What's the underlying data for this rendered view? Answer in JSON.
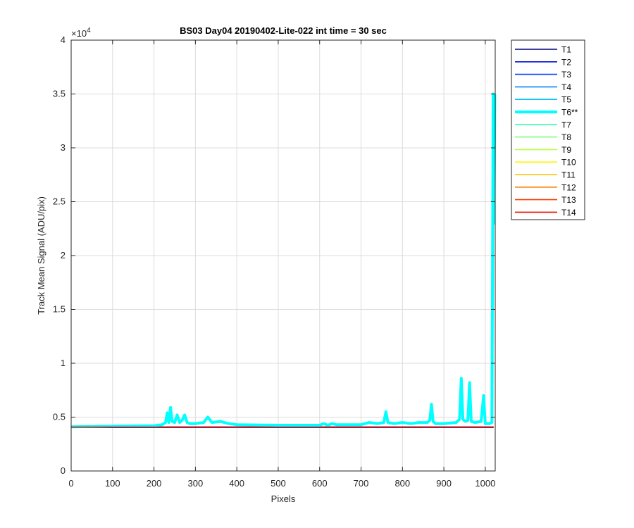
{
  "chart_data": {
    "type": "line",
    "title": "BS03 Day04 20190402-Lite-022 int time = 30 sec",
    "xlabel": "Pixels",
    "ylabel": "Track Mean Signal (ADU/pix)",
    "y_exponent_label": "×10",
    "y_exponent": "4",
    "xlim": [
      0,
      1024
    ],
    "ylim": [
      0,
      40000
    ],
    "xticks": [
      0,
      100,
      200,
      300,
      400,
      500,
      600,
      700,
      800,
      900,
      1000
    ],
    "xtick_labels": [
      "0",
      "100",
      "200",
      "300",
      "400",
      "500",
      "600",
      "700",
      "800",
      "900",
      "1000"
    ],
    "yticks": [
      0,
      5000,
      10000,
      15000,
      20000,
      25000,
      30000,
      35000,
      40000
    ],
    "ytick_labels": [
      "0",
      "0.5",
      "1",
      "1.5",
      "2",
      "2.5",
      "3",
      "3.5",
      "4"
    ],
    "grid": true,
    "legend_position": "outside-top-right",
    "series": [
      {
        "name": "T1",
        "color": "#00007F",
        "highlight": false
      },
      {
        "name": "T2",
        "color": "#0011D4",
        "highlight": false
      },
      {
        "name": "T3",
        "color": "#0044FF",
        "highlight": false
      },
      {
        "name": "T4",
        "color": "#0085FF",
        "highlight": false
      },
      {
        "name": "T5",
        "color": "#00C0FF",
        "highlight": false
      },
      {
        "name": "T6**",
        "color": "#00FFFF",
        "highlight": true,
        "x": [
          0,
          100,
          200,
          220,
          228,
          232,
          236,
          240,
          244,
          250,
          256,
          262,
          268,
          274,
          280,
          286,
          300,
          320,
          330,
          340,
          360,
          380,
          400,
          500,
          600,
          610,
          620,
          630,
          640,
          700,
          720,
          740,
          755,
          760,
          765,
          780,
          800,
          820,
          840,
          860,
          866,
          870,
          874,
          880,
          900,
          930,
          938,
          942,
          946,
          952,
          958,
          962,
          966,
          975,
          990,
          996,
          1000,
          1004,
          1010,
          1016,
          1019,
          1021,
          1023
        ],
        "y": [
          4100,
          4150,
          4200,
          4300,
          4500,
          5400,
          4500,
          5900,
          4600,
          4500,
          5200,
          4500,
          4700,
          5200,
          4500,
          4400,
          4400,
          4500,
          5000,
          4500,
          4600,
          4400,
          4300,
          4250,
          4250,
          4400,
          4250,
          4400,
          4300,
          4300,
          4500,
          4400,
          4500,
          5500,
          4500,
          4400,
          4500,
          4400,
          4500,
          4500,
          4700,
          6200,
          4600,
          4400,
          4400,
          4500,
          4800,
          8600,
          4800,
          4600,
          4700,
          8200,
          4600,
          4500,
          4600,
          7000,
          4400,
          4400,
          4400,
          4500,
          35000,
          23000,
          35000
        ]
      },
      {
        "name": "T7",
        "color": "#40FFB8",
        "highlight": false
      },
      {
        "name": "T8",
        "color": "#7CFF7C",
        "highlight": false
      },
      {
        "name": "T9",
        "color": "#B8FF40",
        "highlight": false
      },
      {
        "name": "T10",
        "color": "#FFF500",
        "highlight": false
      },
      {
        "name": "T11",
        "color": "#FFBE00",
        "highlight": false
      },
      {
        "name": "T12",
        "color": "#FF7A00",
        "highlight": false
      },
      {
        "name": "T13",
        "color": "#FF3B00",
        "highlight": false
      },
      {
        "name": "T14",
        "color": "#E01000",
        "highlight": false
      }
    ],
    "baseline_value": 4070
  }
}
